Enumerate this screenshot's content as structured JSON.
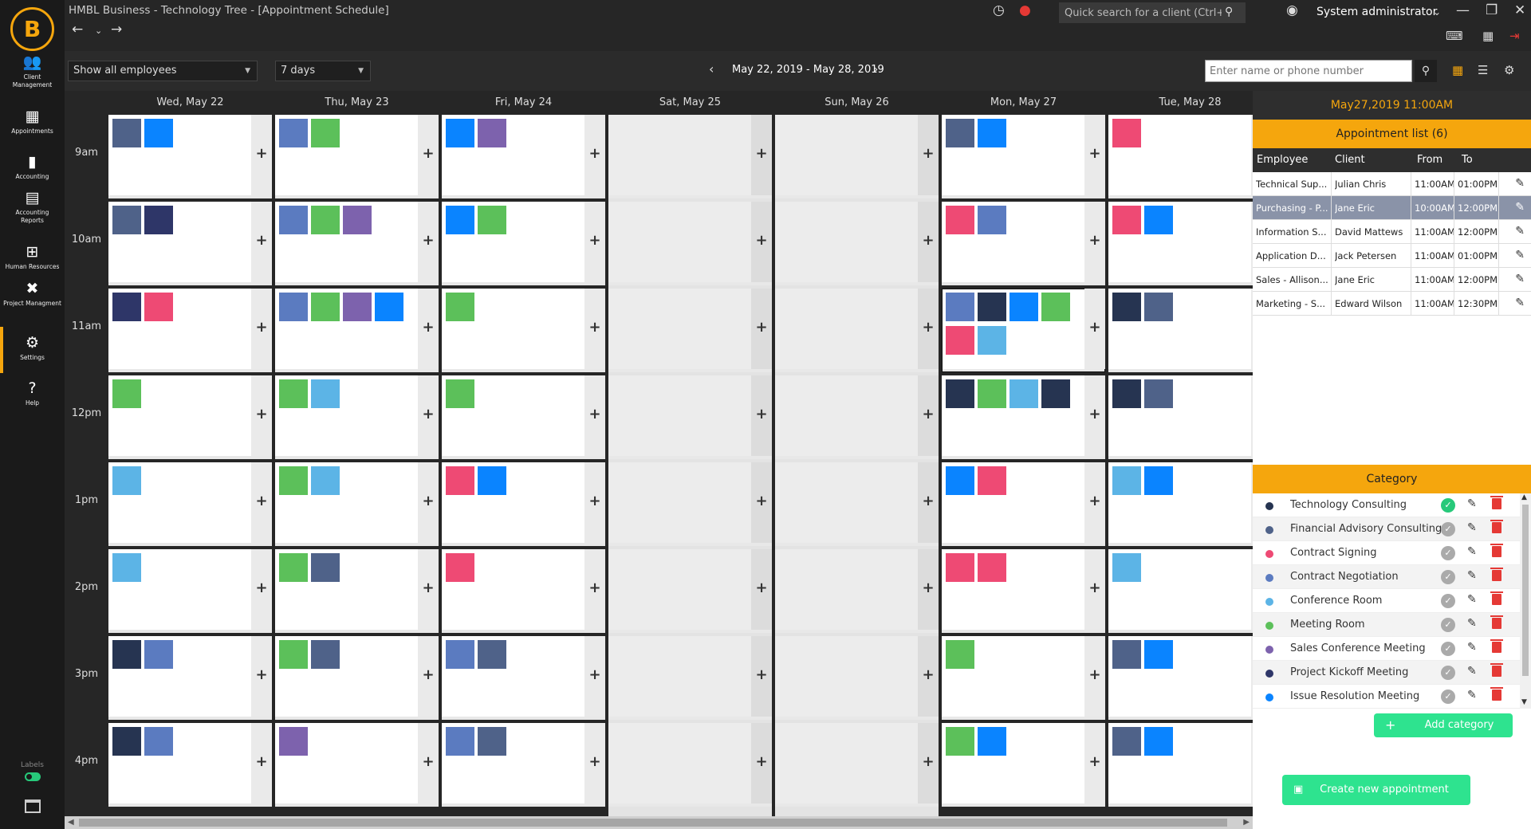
{
  "app": {
    "title": "HMBL Business - Technology Tree  - [Appointment Schedule]",
    "search_placeholder": "Quick search for a client (Ctrl+S)",
    "user": "System administrator"
  },
  "sidebar": {
    "items": [
      {
        "label": "Client Management",
        "icon": "users-icon",
        "glyph": "👥"
      },
      {
        "label": "Appointments",
        "icon": "calendar-icon",
        "glyph": "▦"
      },
      {
        "label": "Accounting",
        "icon": "bar-chart-icon",
        "glyph": "▮"
      },
      {
        "label": "Accounting Reports",
        "icon": "report-icon",
        "glyph": "▤"
      },
      {
        "label": "Human Resources",
        "icon": "org-chart-icon",
        "glyph": "⊞"
      },
      {
        "label": "Project Managment",
        "icon": "tools-icon",
        "glyph": "✖"
      },
      {
        "label": "Settings",
        "icon": "gear-icon",
        "glyph": "⚙"
      },
      {
        "label": "Help",
        "icon": "question-icon",
        "glyph": "?"
      }
    ],
    "active_index": 6,
    "labels_toggle": "Labels"
  },
  "toolbar": {
    "employee_select": "Show all employees",
    "range_select": "7 days",
    "date_range": "May 22, 2019 - May 28, 2019",
    "name_search_placeholder": "Enter name or phone number"
  },
  "calendar": {
    "days": [
      {
        "label": "Wed, May 22",
        "weekend": false
      },
      {
        "label": "Thu, May 23",
        "weekend": false
      },
      {
        "label": "Fri, May 24",
        "weekend": false
      },
      {
        "label": "Sat, May 25",
        "weekend": true
      },
      {
        "label": "Sun, May 26",
        "weekend": true
      },
      {
        "label": "Mon, May 27",
        "weekend": false
      },
      {
        "label": "Tue, May 28",
        "weekend": false
      }
    ],
    "times": [
      "9am",
      "10am",
      "11am",
      "12pm",
      "1pm",
      "2pm",
      "3pm",
      "4pm"
    ],
    "selected_cell": {
      "day": 5,
      "slot": 2
    },
    "colors": {
      "slate": "#4f6289",
      "blue": "#5b7bc0",
      "navy": "#2e3668",
      "darknavy": "#263451",
      "bright": "#0a84ff",
      "green": "#5cc05a",
      "purple": "#7d62ad",
      "pink": "#ee4a74",
      "sky": "#5cb4e6"
    },
    "appointments": [
      [
        [
          "slate",
          "bright"
        ],
        [
          "slate",
          "navy"
        ],
        [
          "navy",
          "pink"
        ],
        [
          "green"
        ],
        [
          "sky"
        ],
        [
          "sky"
        ],
        [
          "darknavy",
          "blue"
        ],
        [
          "darknavy",
          "blue"
        ]
      ],
      [
        [
          "blue",
          "green"
        ],
        [
          "blue",
          "green",
          "purple"
        ],
        [
          "blue",
          "green",
          "purple",
          "bright"
        ],
        [
          "green",
          "sky"
        ],
        [
          "green",
          "sky"
        ],
        [
          "green",
          "slate"
        ],
        [
          "green",
          "slate"
        ],
        [
          "purple"
        ]
      ],
      [
        [
          "bright",
          "purple"
        ],
        [
          "bright",
          "green"
        ],
        [
          "green"
        ],
        [
          "green"
        ],
        [
          "pink",
          "bright"
        ],
        [
          "pink"
        ],
        [
          "blue",
          "slate"
        ],
        [
          "blue",
          "slate"
        ]
      ],
      [
        [],
        [],
        [],
        [],
        [],
        [],
        [],
        []
      ],
      [
        [],
        [],
        [],
        [],
        [],
        [],
        [],
        []
      ],
      [
        [
          "slate",
          "bright"
        ],
        [
          "pink",
          "blue"
        ],
        [
          "blue",
          "darknavy",
          "bright",
          "green",
          "pink",
          "sky"
        ],
        [
          "darknavy",
          "green",
          "sky",
          "darknavy"
        ],
        [
          "bright",
          "pink"
        ],
        [
          "pink",
          "pink"
        ],
        [
          "green"
        ],
        [
          "green",
          "bright"
        ]
      ],
      [
        [
          "pink"
        ],
        [
          "pink",
          "bright"
        ],
        [
          "darknavy",
          "slate"
        ],
        [
          "darknavy",
          "slate"
        ],
        [
          "sky",
          "bright"
        ],
        [
          "sky"
        ],
        [
          "slate",
          "bright"
        ],
        [
          "slate",
          "bright"
        ]
      ]
    ]
  },
  "panel": {
    "datetime": "May27,2019 11:00AM",
    "appointment_list_title": "Appointment list (6)",
    "columns": {
      "employee": "Employee",
      "client": "Client",
      "from": "From",
      "to": "To"
    },
    "appointments": [
      {
        "employee": "Technical Sup...",
        "client": "Julian Chris",
        "from": "11:00AM",
        "to": "01:00PM"
      },
      {
        "employee": "Purchasing - P...",
        "client": "Jane Eric",
        "from": "10:00AM",
        "to": "12:00PM"
      },
      {
        "employee": "Information S...",
        "client": "David Mattews",
        "from": "11:00AM",
        "to": "12:00PM"
      },
      {
        "employee": "Application D...",
        "client": "Jack Petersen",
        "from": "11:00AM",
        "to": "01:00PM"
      },
      {
        "employee": "Sales - Allison...",
        "client": "Jane Eric",
        "from": "11:00AM",
        "to": "12:00PM"
      },
      {
        "employee": "Marketing - S...",
        "client": "Edward Wilson",
        "from": "11:00AM",
        "to": "12:30PM"
      }
    ],
    "selected_appointment": 1,
    "category_title": "Category",
    "categories": [
      {
        "name": "Technology Consulting",
        "color": "#263451",
        "active": true
      },
      {
        "name": "Financial Advisory Consulting",
        "color": "#4f6289",
        "active": false
      },
      {
        "name": "Contract Signing",
        "color": "#ee4a74",
        "active": false
      },
      {
        "name": "Contract Negotiation",
        "color": "#5b7bc0",
        "active": false
      },
      {
        "name": "Conference Room",
        "color": "#5cb4e6",
        "active": false
      },
      {
        "name": "Meeting Room",
        "color": "#5cc05a",
        "active": false
      },
      {
        "name": "Sales Conference Meeting",
        "color": "#7d62ad",
        "active": false
      },
      {
        "name": "Project Kickoff Meeting",
        "color": "#2e3668",
        "active": false
      },
      {
        "name": "Issue Resolution Meeting",
        "color": "#0a84ff",
        "active": false
      }
    ],
    "add_category_label": "Add category",
    "create_appointment_label": "Create new appointment"
  }
}
